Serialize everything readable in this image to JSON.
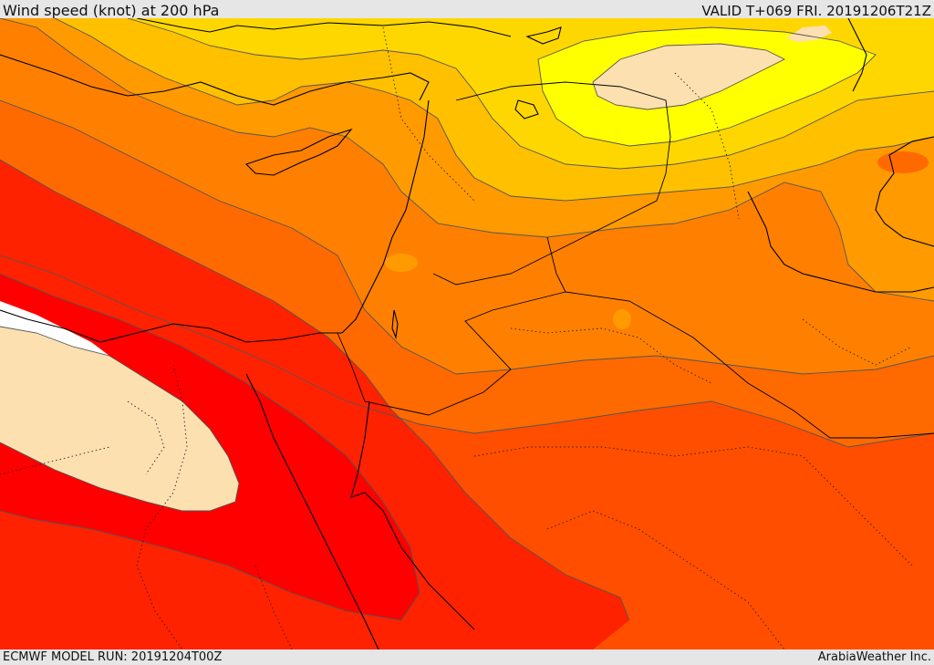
{
  "header": {
    "title": "Wind speed (knot) at 200 hPa",
    "valid": "VALID T+069 FRI. 20191206T21Z"
  },
  "footer": {
    "model_run": "ECMWF MODEL RUN: 20191204T00Z",
    "credit": "ArabiaWeather Inc."
  },
  "colors": {
    "bands": [
      "#ffffff",
      "#fde0b0",
      "#ffff00",
      "#ffd700",
      "#ffc000",
      "#ff9a00",
      "#ff8000",
      "#ff6a00",
      "#ff4e00",
      "#ff2200",
      "#ff0000"
    ],
    "contour": "#555555",
    "coastline": "#000000"
  }
}
